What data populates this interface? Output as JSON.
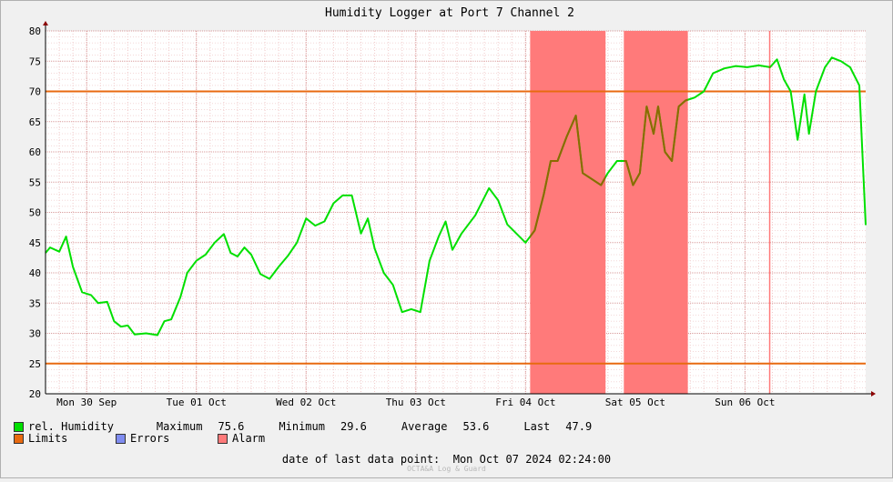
{
  "chart_data": {
    "type": "line",
    "title": "Humidity Logger at Port 7 Channel 2",
    "ylim": [
      20,
      80
    ],
    "yticks": [
      20,
      25,
      30,
      35,
      40,
      45,
      50,
      55,
      60,
      65,
      70,
      75,
      80
    ],
    "x_range": [
      "2024-09-29T15:00",
      "2024-10-07T02:24"
    ],
    "x_tick_labels": [
      {
        "label": "Mon 30 Sep",
        "date": "2024-09-30T00:00"
      },
      {
        "label": "Tue 01 Oct",
        "date": "2024-10-01T00:00"
      },
      {
        "label": "Wed 02 Oct",
        "date": "2024-10-02T00:00"
      },
      {
        "label": "Thu 03 Oct",
        "date": "2024-10-03T00:00"
      },
      {
        "label": "Fri 04 Oct",
        "date": "2024-10-04T00:00"
      },
      {
        "label": "Sat 05 Oct",
        "date": "2024-10-05T00:00"
      },
      {
        "label": "Sun 06 Oct",
        "date": "2024-10-06T00:00"
      }
    ],
    "grid": true,
    "limits": [
      70,
      25
    ],
    "alarm_periods": [
      [
        "2024-10-04T01:00",
        "2024-10-04T17:30"
      ],
      [
        "2024-10-04T21:30",
        "2024-10-05T11:30"
      ],
      [
        "2024-10-06T05:15",
        "2024-10-06T05:30"
      ]
    ],
    "series": [
      {
        "name": "rel. Humidity",
        "color": "#00e000",
        "alarm_color": "#8b6a00",
        "points": [
          [
            "2024-09-29T15:00",
            43.3
          ],
          [
            "2024-09-29T16:00",
            44.2
          ],
          [
            "2024-09-29T18:00",
            43.5
          ],
          [
            "2024-09-29T19:30",
            46.0
          ],
          [
            "2024-09-29T21:00",
            41.0
          ],
          [
            "2024-09-29T23:00",
            36.8
          ],
          [
            "2024-09-30T01:00",
            36.3
          ],
          [
            "2024-09-30T02:30",
            35.0
          ],
          [
            "2024-09-30T04:30",
            35.2
          ],
          [
            "2024-09-30T06:00",
            32.0
          ],
          [
            "2024-09-30T07:30",
            31.1
          ],
          [
            "2024-09-30T09:00",
            31.3
          ],
          [
            "2024-09-30T10:30",
            29.8
          ],
          [
            "2024-09-30T13:00",
            30.0
          ],
          [
            "2024-09-30T15:30",
            29.7
          ],
          [
            "2024-09-30T17:00",
            32.0
          ],
          [
            "2024-09-30T18:30",
            32.3
          ],
          [
            "2024-09-30T20:30",
            36.0
          ],
          [
            "2024-09-30T22:00",
            40.0
          ],
          [
            "2024-10-01T00:00",
            42.0
          ],
          [
            "2024-10-01T02:00",
            43.0
          ],
          [
            "2024-10-01T04:00",
            45.0
          ],
          [
            "2024-10-01T06:00",
            46.4
          ],
          [
            "2024-10-01T07:30",
            43.3
          ],
          [
            "2024-10-01T09:00",
            42.7
          ],
          [
            "2024-10-01T10:30",
            44.2
          ],
          [
            "2024-10-01T12:00",
            43.0
          ],
          [
            "2024-10-01T14:00",
            39.8
          ],
          [
            "2024-10-01T16:00",
            39.0
          ],
          [
            "2024-10-01T18:00",
            41.0
          ],
          [
            "2024-10-01T20:00",
            42.8
          ],
          [
            "2024-10-01T22:00",
            45.0
          ],
          [
            "2024-10-02T00:00",
            49.0
          ],
          [
            "2024-10-02T02:00",
            47.8
          ],
          [
            "2024-10-02T04:00",
            48.5
          ],
          [
            "2024-10-02T06:00",
            51.5
          ],
          [
            "2024-10-02T08:00",
            52.8
          ],
          [
            "2024-10-02T10:00",
            52.8
          ],
          [
            "2024-10-02T12:00",
            46.5
          ],
          [
            "2024-10-02T13:30",
            49.0
          ],
          [
            "2024-10-02T15:00",
            44.0
          ],
          [
            "2024-10-02T17:00",
            40.0
          ],
          [
            "2024-10-02T19:00",
            38.0
          ],
          [
            "2024-10-02T21:00",
            33.5
          ],
          [
            "2024-10-02T23:00",
            34.0
          ],
          [
            "2024-10-03T01:00",
            33.5
          ],
          [
            "2024-10-03T03:00",
            42.0
          ],
          [
            "2024-10-03T05:00",
            46.0
          ],
          [
            "2024-10-03T06:30",
            48.5
          ],
          [
            "2024-10-03T08:00",
            43.8
          ],
          [
            "2024-10-03T10:00",
            46.5
          ],
          [
            "2024-10-03T13:00",
            49.5
          ],
          [
            "2024-10-03T16:00",
            54.0
          ],
          [
            "2024-10-03T18:00",
            52.0
          ],
          [
            "2024-10-03T20:00",
            48.0
          ],
          [
            "2024-10-03T22:00",
            46.5
          ],
          [
            "2024-10-04T00:00",
            45.0
          ],
          [
            "2024-10-04T02:00",
            47.0
          ],
          [
            "2024-10-04T04:00",
            53.0
          ],
          [
            "2024-10-04T05:30",
            58.5
          ],
          [
            "2024-10-04T07:00",
            58.5
          ],
          [
            "2024-10-04T09:00",
            62.5
          ],
          [
            "2024-10-04T11:00",
            66.0
          ],
          [
            "2024-10-04T12:30",
            56.5
          ],
          [
            "2024-10-04T14:30",
            55.5
          ],
          [
            "2024-10-04T16:30",
            54.5
          ],
          [
            "2024-10-04T18:00",
            56.5
          ],
          [
            "2024-10-04T20:00",
            58.5
          ],
          [
            "2024-10-04T22:00",
            58.5
          ],
          [
            "2024-10-04T23:30",
            54.5
          ],
          [
            "2024-10-05T01:00",
            56.5
          ],
          [
            "2024-10-05T02:30",
            67.5
          ],
          [
            "2024-10-05T04:00",
            63.0
          ],
          [
            "2024-10-05T05:00",
            67.5
          ],
          [
            "2024-10-05T06:30",
            60.0
          ],
          [
            "2024-10-05T08:00",
            58.5
          ],
          [
            "2024-10-05T09:30",
            67.5
          ],
          [
            "2024-10-05T11:00",
            68.5
          ],
          [
            "2024-10-05T13:00",
            69.0
          ],
          [
            "2024-10-05T15:00",
            70.0
          ],
          [
            "2024-10-05T17:00",
            73.0
          ],
          [
            "2024-10-05T19:30",
            73.8
          ],
          [
            "2024-10-05T22:00",
            74.2
          ],
          [
            "2024-10-06T00:30",
            74.0
          ],
          [
            "2024-10-06T03:00",
            74.3
          ],
          [
            "2024-10-06T05:30",
            74.0
          ],
          [
            "2024-10-06T07:00",
            75.3
          ],
          [
            "2024-10-06T08:30",
            72.0
          ],
          [
            "2024-10-06T10:00",
            70.0
          ],
          [
            "2024-10-06T11:30",
            62.0
          ],
          [
            "2024-10-06T13:00",
            69.5
          ],
          [
            "2024-10-06T14:00",
            63.0
          ],
          [
            "2024-10-06T15:30",
            70.0
          ],
          [
            "2024-10-06T17:30",
            74.0
          ],
          [
            "2024-10-06T19:00",
            75.6
          ],
          [
            "2024-10-06T21:00",
            75.0
          ],
          [
            "2024-10-06T23:00",
            74.0
          ],
          [
            "2024-10-07T01:00",
            71.0
          ],
          [
            "2024-10-07T02:24",
            47.9
          ]
        ]
      }
    ],
    "thresholds": [
      {
        "name": "Limits",
        "value": 70,
        "color": "#e86a10"
      },
      {
        "name": "Limits",
        "value": 25,
        "color": "#e86a10"
      }
    ],
    "alarm_color": "#ff7a7a",
    "error_color": "#7f8cf0"
  },
  "legend": {
    "series_label": "rel. Humidity",
    "maximum_label": "Maximum",
    "maximum_value": "75.6",
    "minimum_label": "Minimum",
    "minimum_value": "29.6",
    "average_label": "Average",
    "average_value": "53.6",
    "last_label": "Last",
    "last_value": "47.9",
    "limits_label": "Limits",
    "errors_label": "Errors",
    "alarm_label": "Alarm"
  },
  "footer": {
    "date_label": "date of last data point:",
    "date_value": "Mon Oct 07 2024 02:24:00",
    "watermark": "OCTA&A Log & Guard"
  }
}
